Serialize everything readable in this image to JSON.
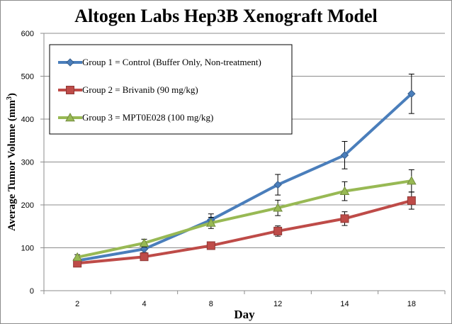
{
  "chart_data": {
    "type": "line",
    "title": "Altogen Labs Hep3B Xenograft Model",
    "xlabel": "Day",
    "ylabel_main": "Average Tumor Volume (mm",
    "ylabel_sup": "3",
    "ylabel_end": ")",
    "categories": [
      "2",
      "4",
      "8",
      "12",
      "14",
      "18"
    ],
    "ylim": [
      0,
      600
    ],
    "yticks": [
      0,
      100,
      200,
      300,
      400,
      500,
      600
    ],
    "grid": "horizontal",
    "legend_position": "top-left",
    "series": [
      {
        "name": "Group 1 = Control (Buffer Only, Non-treatment)",
        "color": "#4a7ebb",
        "marker": "diamond",
        "values": [
          70,
          97,
          165,
          247,
          316,
          459
        ],
        "errors": [
          6,
          8,
          14,
          24,
          32,
          46
        ]
      },
      {
        "name": "Group 2 = Brivanib (90 mg/kg)",
        "color": "#be4b48",
        "marker": "square",
        "values": [
          64,
          79,
          105,
          139,
          168,
          210
        ],
        "errors": [
          5,
          7,
          9,
          12,
          16,
          20
        ]
      },
      {
        "name": "Group 3 = MPT0E028 (100 mg/kg)",
        "color": "#98b954",
        "marker": "triangle",
        "values": [
          78,
          111,
          158,
          193,
          232,
          256
        ],
        "errors": [
          6,
          9,
          13,
          18,
          22,
          26
        ]
      }
    ]
  }
}
